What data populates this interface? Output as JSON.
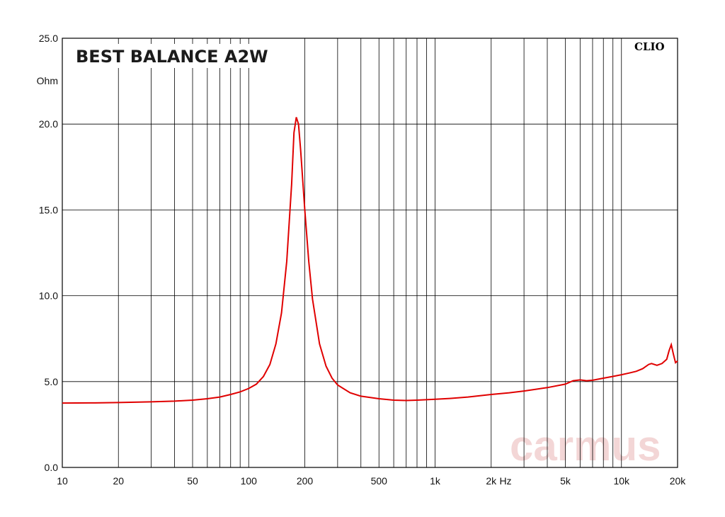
{
  "chart_data": {
    "type": "line",
    "title": "BEST BALANCE A2W",
    "brand": "CLIO",
    "watermark": "carmus",
    "ylabel": "Ohm",
    "xunit": "Hz",
    "xscale": "log",
    "xlim": [
      10,
      20000
    ],
    "ylim": [
      0,
      25
    ],
    "grid": true,
    "x_ticks": [
      {
        "value": 10,
        "label": "10"
      },
      {
        "value": 20,
        "label": "20"
      },
      {
        "value": 50,
        "label": "50"
      },
      {
        "value": 100,
        "label": "100"
      },
      {
        "value": 200,
        "label": "200"
      },
      {
        "value": 500,
        "label": "500"
      },
      {
        "value": 1000,
        "label": "1k"
      },
      {
        "value": 2000,
        "label": "2k"
      },
      {
        "value": 5000,
        "label": "5k"
      },
      {
        "value": 10000,
        "label": "10k"
      },
      {
        "value": 20000,
        "label": "20k"
      }
    ],
    "y_ticks": [
      {
        "value": 0,
        "label": "0.0"
      },
      {
        "value": 5,
        "label": "5.0"
      },
      {
        "value": 10,
        "label": "10.0"
      },
      {
        "value": 15,
        "label": "15.0"
      },
      {
        "value": 20,
        "label": "20.0"
      },
      {
        "value": 25,
        "label": "25.0"
      }
    ],
    "colors": {
      "line": "#e00000",
      "grid": "#000000",
      "watermark": "#f3d6d6"
    },
    "series": [
      {
        "points": [
          [
            10,
            3.75
          ],
          [
            15,
            3.76
          ],
          [
            20,
            3.78
          ],
          [
            30,
            3.82
          ],
          [
            40,
            3.86
          ],
          [
            50,
            3.92
          ],
          [
            60,
            4.0
          ],
          [
            70,
            4.1
          ],
          [
            80,
            4.25
          ],
          [
            90,
            4.4
          ],
          [
            100,
            4.6
          ],
          [
            110,
            4.85
          ],
          [
            120,
            5.3
          ],
          [
            130,
            6.0
          ],
          [
            140,
            7.2
          ],
          [
            150,
            9.0
          ],
          [
            160,
            12.0
          ],
          [
            170,
            16.5
          ],
          [
            175,
            19.5
          ],
          [
            180,
            20.4
          ],
          [
            185,
            20.0
          ],
          [
            190,
            18.5
          ],
          [
            200,
            15.0
          ],
          [
            210,
            12.0
          ],
          [
            220,
            9.8
          ],
          [
            240,
            7.2
          ],
          [
            260,
            5.9
          ],
          [
            280,
            5.2
          ],
          [
            300,
            4.8
          ],
          [
            350,
            4.35
          ],
          [
            400,
            4.15
          ],
          [
            500,
            4.0
          ],
          [
            600,
            3.92
          ],
          [
            700,
            3.9
          ],
          [
            800,
            3.92
          ],
          [
            1000,
            3.97
          ],
          [
            1200,
            4.02
          ],
          [
            1500,
            4.1
          ],
          [
            2000,
            4.25
          ],
          [
            2500,
            4.35
          ],
          [
            3000,
            4.45
          ],
          [
            4000,
            4.65
          ],
          [
            5000,
            4.85
          ],
          [
            5500,
            5.05
          ],
          [
            6000,
            5.1
          ],
          [
            6500,
            5.05
          ],
          [
            7000,
            5.08
          ],
          [
            8000,
            5.2
          ],
          [
            9000,
            5.3
          ],
          [
            10000,
            5.4
          ],
          [
            11000,
            5.5
          ],
          [
            12000,
            5.6
          ],
          [
            13000,
            5.75
          ],
          [
            14000,
            6.0
          ],
          [
            14500,
            6.05
          ],
          [
            15500,
            5.95
          ],
          [
            16500,
            6.05
          ],
          [
            17500,
            6.3
          ],
          [
            18000,
            6.8
          ],
          [
            18500,
            7.15
          ],
          [
            19000,
            6.6
          ],
          [
            19500,
            6.1
          ],
          [
            20000,
            6.2
          ]
        ]
      }
    ]
  }
}
